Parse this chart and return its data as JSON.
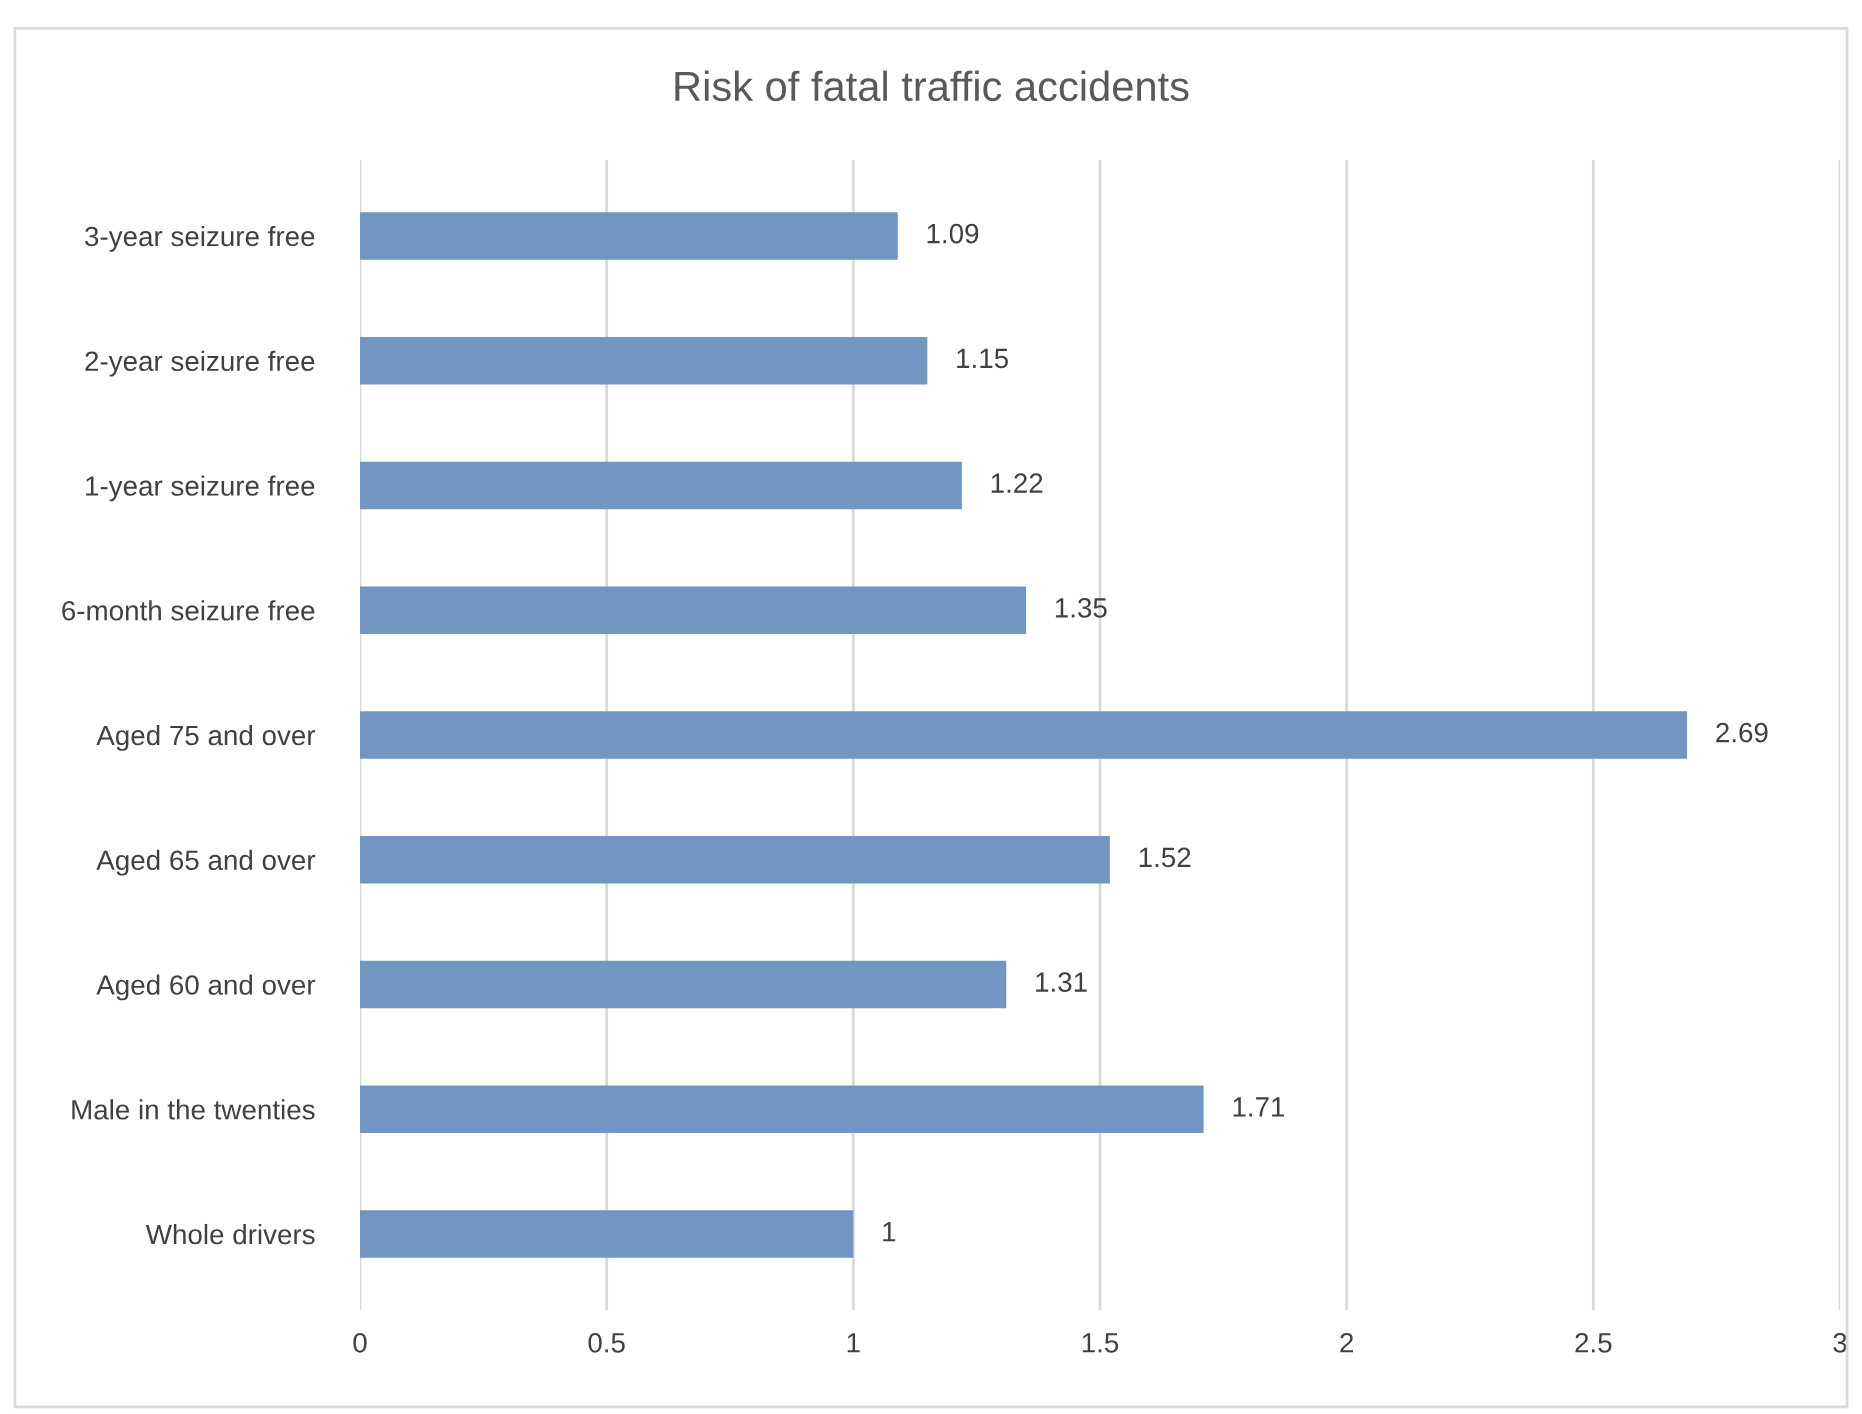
{
  "chart_data": {
    "type": "bar",
    "orientation": "horizontal",
    "title": "Risk of fatal traffic accidents",
    "categories": [
      "3-year seizure free",
      "2-year seizure free",
      "1-year seizure free",
      "6-month seizure free",
      "Aged 75 and over",
      "Aged 65 and over",
      "Aged 60 and over",
      "Male in the twenties",
      "Whole drivers"
    ],
    "values": [
      1.09,
      1.15,
      1.22,
      1.35,
      2.69,
      1.52,
      1.31,
      1.71,
      1
    ],
    "color": "#7096c1",
    "xlim": [
      0,
      3
    ],
    "xticks": [
      0,
      0.5,
      1,
      1.5,
      2,
      2.5,
      3
    ],
    "grid": "x",
    "data_labels": true
  }
}
